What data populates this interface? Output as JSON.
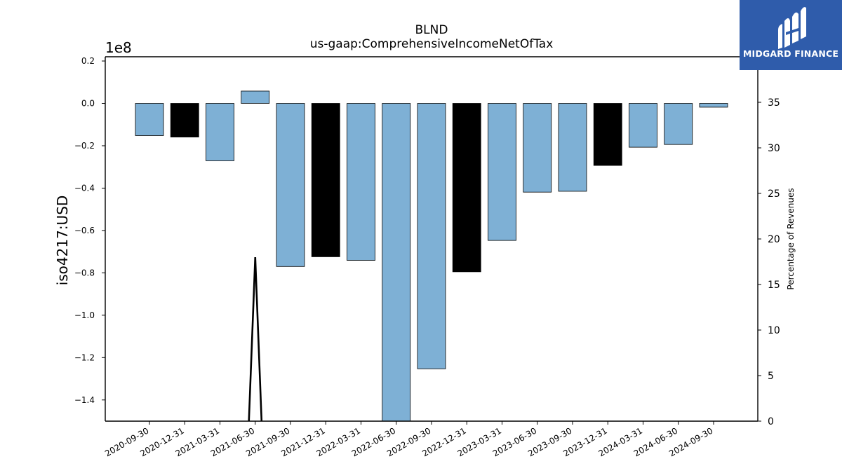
{
  "chart_data": {
    "type": "bar",
    "title": "BLND",
    "subtitle": "us-gaap:ComprehensiveIncomeNetOfTax",
    "ylabel": "iso4217:USD",
    "y_offset_label": "1e8",
    "y2label": "Percentage of Revenues",
    "categories": [
      "2020-09-30",
      "2020-12-31",
      "2021-03-31",
      "2021-06-30",
      "2021-09-30",
      "2021-12-31",
      "2022-03-31",
      "2022-06-30",
      "2022-09-30",
      "2022-12-31",
      "2023-03-31",
      "2023-06-30",
      "2023-09-30",
      "2023-12-31",
      "2024-03-31",
      "2024-06-30",
      "2024-09-30"
    ],
    "values": [
      -15200000,
      -15900000,
      -27100000,
      5800000,
      -77000000,
      -72400000,
      -74100000,
      -150500000,
      -125300000,
      -79500000,
      -64700000,
      -41900000,
      -41500000,
      -29300000,
      -20700000,
      -19400000,
      -1800000
    ],
    "bar_colors": [
      "#7eb0d5",
      "#000000",
      "#7eb0d5",
      "#7eb0d5",
      "#7eb0d5",
      "#000000",
      "#7eb0d5",
      "#7eb0d5",
      "#7eb0d5",
      "#000000",
      "#7eb0d5",
      "#7eb0d5",
      "#7eb0d5",
      "#000000",
      "#7eb0d5",
      "#7eb0d5",
      "#7eb0d5"
    ],
    "ylim": [
      -150000000,
      22000000
    ],
    "yticks": [
      0.2,
      0.0,
      -0.2,
      -0.4,
      -0.6,
      -0.8,
      -1.0,
      -1.2,
      -1.4
    ],
    "ytick_labels": [
      "0.2",
      "0.0",
      "−0.2",
      "−0.4",
      "−0.6",
      "−0.8",
      "−1.0",
      "−1.2",
      "−1.4"
    ],
    "y2lim": [
      0,
      40
    ],
    "y2ticks": [
      0,
      5,
      10,
      15,
      20,
      25,
      30,
      35
    ],
    "y2tick_labels": [
      "0",
      "5",
      "10",
      "15",
      "20",
      "25",
      "30",
      "35"
    ],
    "line_series": {
      "axis": "right",
      "x_index": [
        2.82,
        3.0,
        3.18
      ],
      "values": [
        0,
        18,
        0
      ]
    },
    "grid": false,
    "legend": "none"
  },
  "logo": {
    "text": "MIDGARD FINANCE",
    "color": "#2f5cab"
  }
}
